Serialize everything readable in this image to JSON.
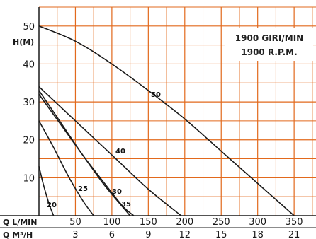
{
  "chart_data": {
    "type": "line",
    "annotation_lines": [
      "1900 GIRI/MIN",
      "1900 R.P.M."
    ],
    "ylabel": "H(M)",
    "xlabel_primary": "Q L/MIN",
    "xlabel_secondary": "Q M³/H",
    "x_ticks": [
      50,
      100,
      150,
      200,
      250,
      300,
      350
    ],
    "x_secondary_ticks": [
      3,
      6,
      9,
      12,
      15,
      18,
      21
    ],
    "y_ticks": [
      10,
      20,
      30,
      40,
      50
    ],
    "xlim": [
      0,
      380
    ],
    "ylim": [
      0,
      55
    ],
    "grid": true,
    "colors": {
      "grid": "#e2691c",
      "curve": "#1a1a1a",
      "axis": "#1a1a1a"
    },
    "series": [
      {
        "name": "20",
        "x": [
          0,
          5,
          10,
          15,
          20
        ],
        "y": [
          13,
          9,
          5.5,
          2.5,
          0
        ]
      },
      {
        "name": "25",
        "x": [
          0,
          20,
          40,
          60,
          75
        ],
        "y": [
          25,
          18,
          10.5,
          4,
          0
        ]
      },
      {
        "name": "30",
        "x": [
          0,
          30,
          60,
          90,
          125
        ],
        "y": [
          33,
          24.5,
          16,
          8,
          0
        ]
      },
      {
        "name": "35",
        "x": [
          0,
          30,
          60,
          90,
          115,
          130
        ],
        "y": [
          32,
          24,
          16,
          8.5,
          2.5,
          0
        ]
      },
      {
        "name": "40",
        "x": [
          0,
          50,
          100,
          150,
          195
        ],
        "y": [
          34,
          25,
          16,
          7,
          0
        ]
      },
      {
        "name": "50",
        "x": [
          0,
          50,
          100,
          150,
          200,
          250,
          300,
          350
        ],
        "y": [
          50,
          46,
          40,
          33,
          25.5,
          17,
          8.5,
          0
        ]
      }
    ]
  }
}
